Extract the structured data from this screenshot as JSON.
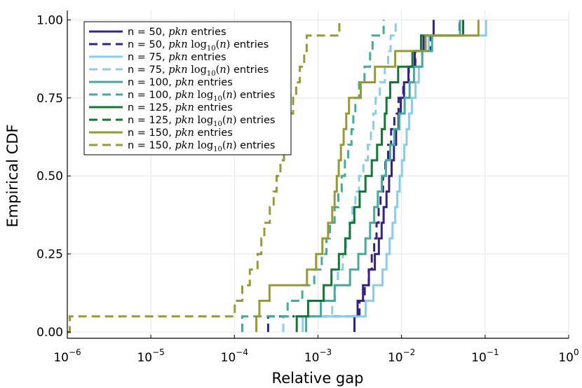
{
  "chart_data": {
    "type": "line",
    "xlabel": "Relative gap",
    "ylabel": "Empirical CDF",
    "xscale": "log10",
    "xlim": [
      1e-06,
      1
    ],
    "ylim": [
      -0.02,
      1.03
    ],
    "x_ticks": [
      {
        "value": 1e-06,
        "base": "10",
        "exp": "−6"
      },
      {
        "value": 1e-05,
        "base": "10",
        "exp": "−5"
      },
      {
        "value": 0.0001,
        "base": "10",
        "exp": "−4"
      },
      {
        "value": 0.001,
        "base": "10",
        "exp": "−3"
      },
      {
        "value": 0.01,
        "base": "10",
        "exp": "−2"
      },
      {
        "value": 0.1,
        "base": "10",
        "exp": "−1"
      },
      {
        "value": 1,
        "base": "10",
        "exp": "0"
      }
    ],
    "y_ticks": [
      {
        "value": 0.0,
        "label": "0.00"
      },
      {
        "value": 0.25,
        "label": "0.25"
      },
      {
        "value": 0.5,
        "label": "0.50"
      },
      {
        "value": 0.75,
        "label": "0.75"
      },
      {
        "value": 1.0,
        "label": "1.00"
      }
    ],
    "grid": true,
    "legend_position": "top-left",
    "series": [
      {
        "name": "n = 50, pkn entries",
        "n": "50",
        "math": "pkn",
        "color": "#332288",
        "dash": false,
        "values": [
          0.00273,
          0.00298,
          0.00346,
          0.00407,
          0.00479,
          0.00535,
          0.00578,
          0.0061,
          0.0066,
          0.0071,
          0.0076,
          0.0081,
          0.0086,
          0.0092,
          0.0098,
          0.0107,
          0.0121,
          0.0144,
          0.0183,
          0.0242
        ]
      },
      {
        "name": "n = 50, pkn log10(n) entries",
        "n": "50",
        "math": "pkn log10(n)",
        "color": "#332288",
        "dash": true,
        "values": [
          0.000253,
          0.00314,
          0.00362,
          0.00405,
          0.0044,
          0.0047,
          0.00502,
          0.00532,
          0.0056,
          0.006,
          0.0064,
          0.0069,
          0.0075,
          0.0082,
          0.0092,
          0.0105,
          0.0122,
          0.0146,
          0.0219,
          0.0496
        ]
      },
      {
        "name": "n = 75, pkn entries",
        "n": "75",
        "math": "pkn",
        "color": "#88CCEE",
        "dash": false,
        "values": [
          0.000658,
          0.00372,
          0.0046,
          0.00592,
          0.0066,
          0.0072,
          0.0078,
          0.0084,
          0.0089,
          0.0095,
          0.0101,
          0.0108,
          0.0115,
          0.0123,
          0.0133,
          0.0147,
          0.0161,
          0.0177,
          0.0211,
          0.1024
        ]
      },
      {
        "name": "n = 75, pkn log10(n) entries",
        "n": "75",
        "math": "pkn log10(n)",
        "color": "#88CCEE",
        "dash": true,
        "values": [
          0.000384,
          0.00148,
          0.0016,
          0.00173,
          0.00198,
          0.00218,
          0.00238,
          0.00258,
          0.0028,
          0.0031,
          0.0035,
          0.00395,
          0.0043,
          0.0046,
          0.0049,
          0.0055,
          0.0063,
          0.0069,
          0.0074,
          0.0085
        ]
      },
      {
        "name": "n = 100, pkn entries",
        "n": "100",
        "math": "pkn",
        "color": "#44AA99",
        "dash": false,
        "values": [
          0.000721,
          0.00108,
          0.00158,
          0.00242,
          0.00304,
          0.0037,
          0.0042,
          0.0047,
          0.0052,
          0.0058,
          0.0065,
          0.0073,
          0.0082,
          0.0094,
          0.0109,
          0.0125,
          0.0141,
          0.0177,
          0.0232,
          0.0501
        ]
      },
      {
        "name": "n = 100, pkn log10(n) entries",
        "n": "100",
        "math": "pkn log10(n)",
        "color": "#44AA99",
        "dash": true,
        "values": [
          0.000124,
          0.000433,
          0.000649,
          0.000903,
          0.00111,
          0.00126,
          0.00139,
          0.00158,
          0.00175,
          0.00192,
          0.0021,
          0.0023,
          0.00252,
          0.00265,
          0.0028,
          0.0031,
          0.0036,
          0.0042,
          0.0045,
          0.0061
        ]
      },
      {
        "name": "n = 125, pkn entries",
        "n": "125",
        "math": "pkn",
        "color": "#117733",
        "dash": false,
        "values": [
          0.000557,
          0.000762,
          0.00117,
          0.00145,
          0.00178,
          0.00212,
          0.00241,
          0.00272,
          0.00315,
          0.0037,
          0.0044,
          0.0051,
          0.0058,
          0.0063,
          0.0066,
          0.0073,
          0.0091,
          0.0135,
          0.0171,
          0.0546
        ]
      },
      {
        "name": "n = 125, pkn log10(n) entries",
        "n": "125",
        "math": "pkn log10(n)",
        "color": "#117733",
        "dash": true,
        "values": [
          8.68e-05,
          0.000237,
          0.000252,
          0.000282,
          0.000318,
          0.000359,
          0.000397,
          0.000425,
          0.000456,
          0.000507,
          0.000566,
          0.000613,
          0.000649,
          0.000673,
          0.000722,
          0.000766,
          0.00078,
          0.000849,
          0.00102,
          0.00327
        ]
      },
      {
        "name": "n = 150, pkn entries",
        "n": "150",
        "math": "pkn",
        "color": "#999933",
        "dash": false,
        "values": [
          0.000183,
          0.000199,
          0.000263,
          0.000738,
          0.00095,
          0.00113,
          0.00132,
          0.00148,
          0.00158,
          0.00168,
          0.00177,
          0.00188,
          0.00203,
          0.00218,
          0.00235,
          0.00325,
          0.0048,
          0.0084,
          0.0194,
          0.0832
        ]
      },
      {
        "name": "n = 150, pkn log10(n) entries",
        "n": "150",
        "math": "pkn log10(n)",
        "color": "#999933",
        "dash": true,
        "values": [
          1.07e-06,
          0.000101,
          0.000124,
          0.000153,
          0.000189,
          0.00021,
          0.000228,
          0.000265,
          0.000295,
          0.00032,
          0.000355,
          0.000392,
          0.000422,
          0.00046,
          0.000504,
          0.000548,
          0.000606,
          0.000684,
          0.000733,
          0.0018
        ]
      }
    ]
  }
}
